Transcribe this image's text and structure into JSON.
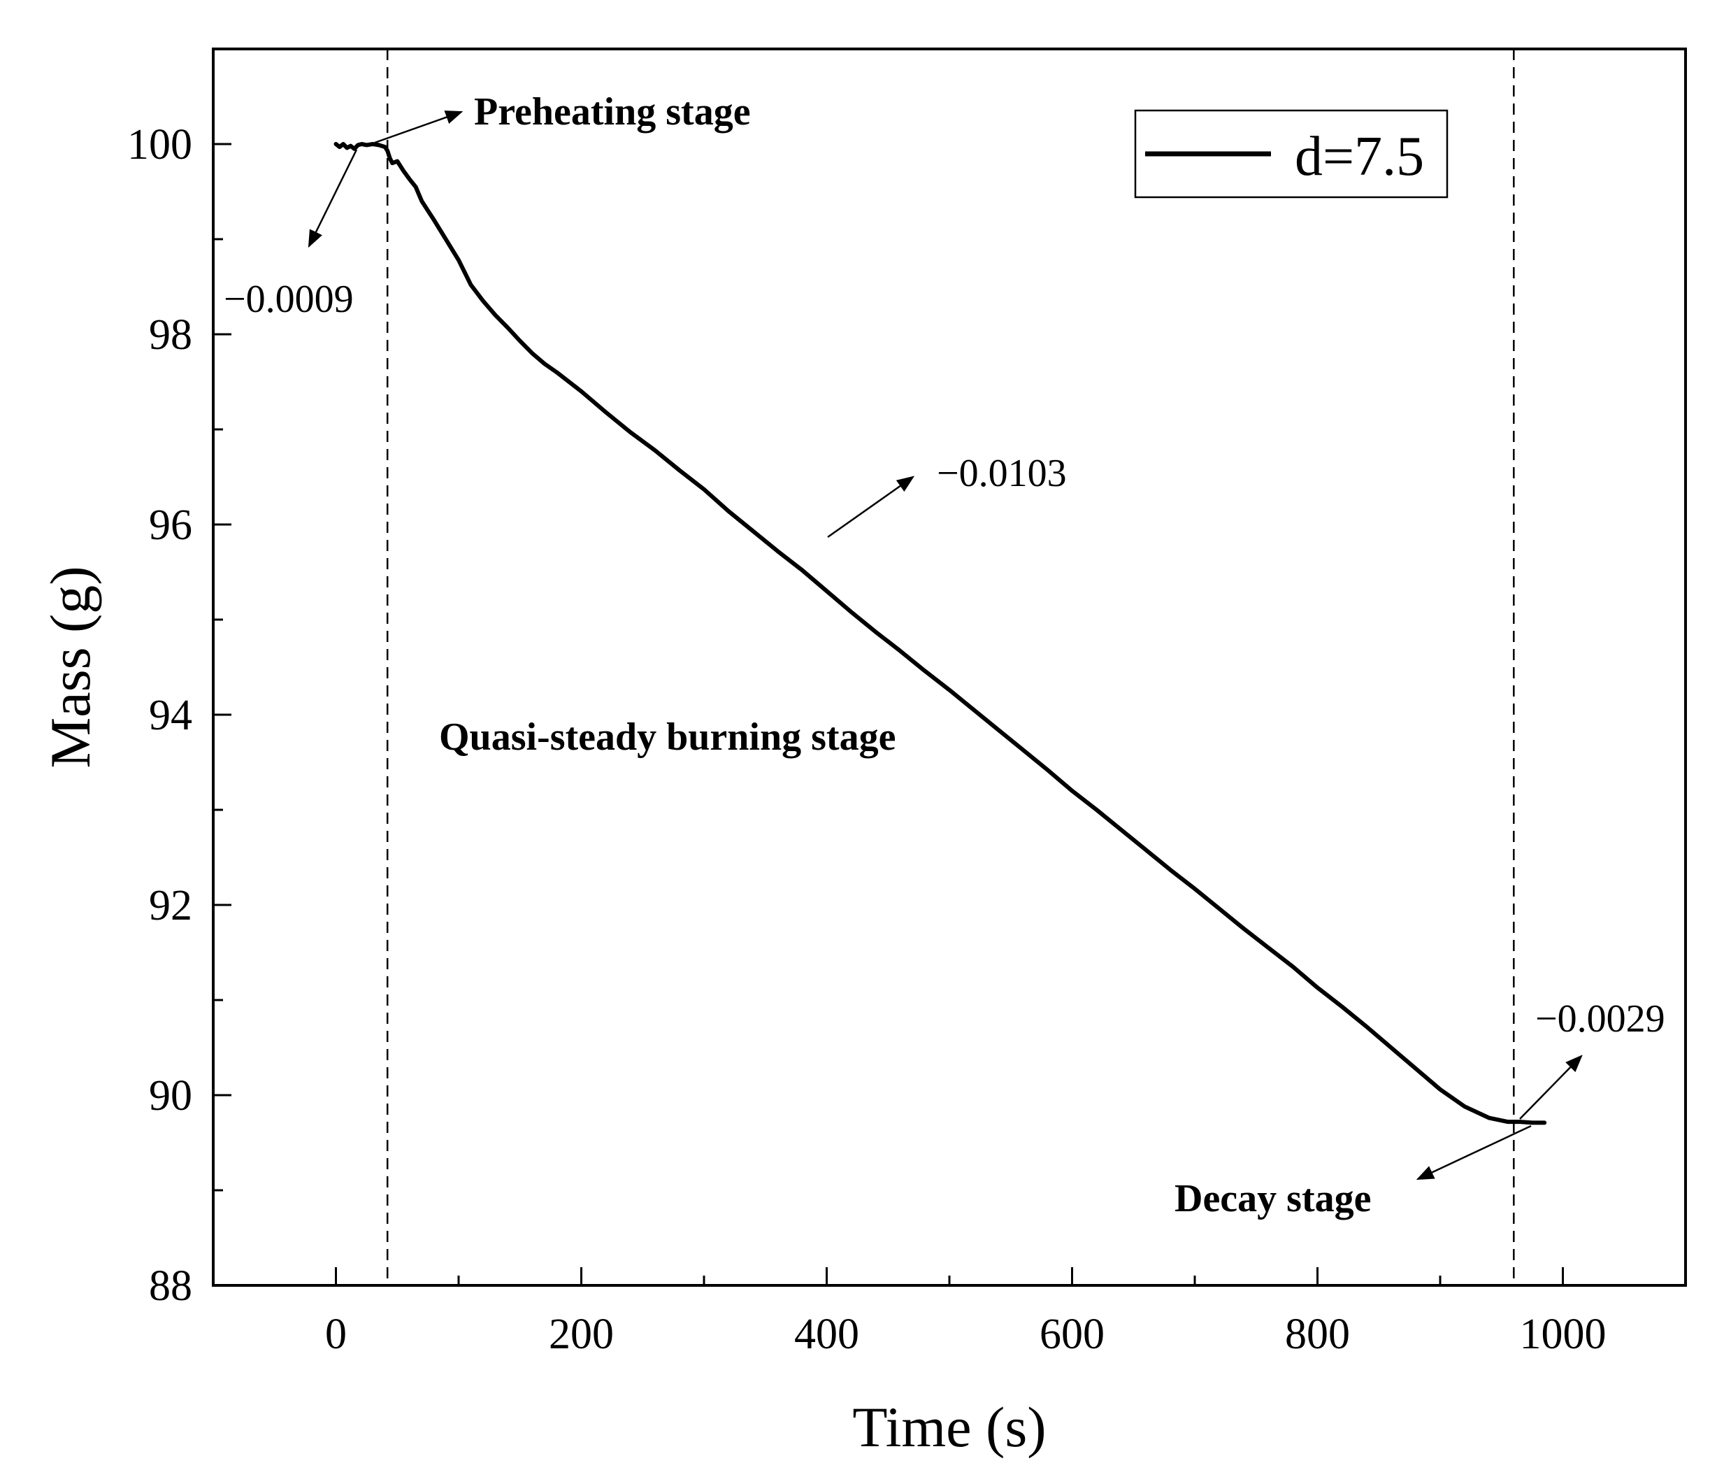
{
  "chart_data": {
    "type": "line",
    "title": "",
    "xlabel": "Time (s)",
    "ylabel": "Mass (g)",
    "xlim": [
      -100,
      1100
    ],
    "ylim": [
      88,
      101
    ],
    "x_ticks": [
      0,
      200,
      400,
      600,
      800,
      1000
    ],
    "x_minor_ticks": [
      100,
      300,
      500,
      700,
      900
    ],
    "y_ticks": [
      88,
      90,
      92,
      94,
      96,
      98,
      100
    ],
    "y_minor_ticks": [
      89,
      91,
      93,
      95,
      97,
      99
    ],
    "grid": false,
    "legend_position": "top-right",
    "series": [
      {
        "name": "d=7.5",
        "color": "#000000",
        "x": [
          0,
          3,
          6,
          9,
          12,
          15,
          18,
          21,
          25,
          30,
          35,
          40,
          42,
          44,
          46,
          50,
          55,
          60,
          65,
          70,
          75,
          80,
          90,
          100,
          110,
          120,
          130,
          140,
          150,
          160,
          170,
          180,
          200,
          220,
          240,
          260,
          280,
          300,
          320,
          340,
          360,
          380,
          400,
          420,
          440,
          460,
          480,
          500,
          520,
          540,
          560,
          580,
          600,
          620,
          640,
          660,
          680,
          700,
          720,
          740,
          760,
          780,
          800,
          820,
          840,
          860,
          880,
          900,
          920,
          940,
          955,
          965,
          975,
          985
        ],
        "values": [
          100.0,
          99.97,
          100.0,
          99.96,
          99.98,
          99.95,
          99.99,
          100.0,
          99.99,
          100.0,
          99.99,
          99.97,
          99.93,
          99.85,
          99.8,
          99.82,
          99.72,
          99.63,
          99.55,
          99.4,
          99.3,
          99.2,
          98.99,
          98.78,
          98.52,
          98.35,
          98.2,
          98.07,
          97.93,
          97.8,
          97.69,
          97.6,
          97.4,
          97.18,
          96.97,
          96.78,
          96.57,
          96.37,
          96.14,
          95.93,
          95.72,
          95.52,
          95.3,
          95.08,
          94.87,
          94.67,
          94.46,
          94.26,
          94.05,
          93.84,
          93.63,
          93.42,
          93.2,
          93.0,
          92.79,
          92.58,
          92.37,
          92.17,
          91.96,
          91.75,
          91.55,
          91.35,
          91.13,
          90.93,
          90.72,
          90.5,
          90.28,
          90.06,
          89.88,
          89.76,
          89.72,
          89.72,
          89.71,
          89.71
        ]
      }
    ],
    "vertical_lines": [
      42,
      960
    ],
    "annotations": [
      {
        "text": "−0.0009",
        "kind": "slope"
      },
      {
        "text": "−0.0103",
        "kind": "slope"
      },
      {
        "text": "−0.0029",
        "kind": "slope"
      },
      {
        "text": "Preheating stage",
        "kind": "stage"
      },
      {
        "text": "Quasi-steady burning stage",
        "kind": "stage"
      },
      {
        "text": "Decay stage",
        "kind": "stage"
      }
    ]
  }
}
